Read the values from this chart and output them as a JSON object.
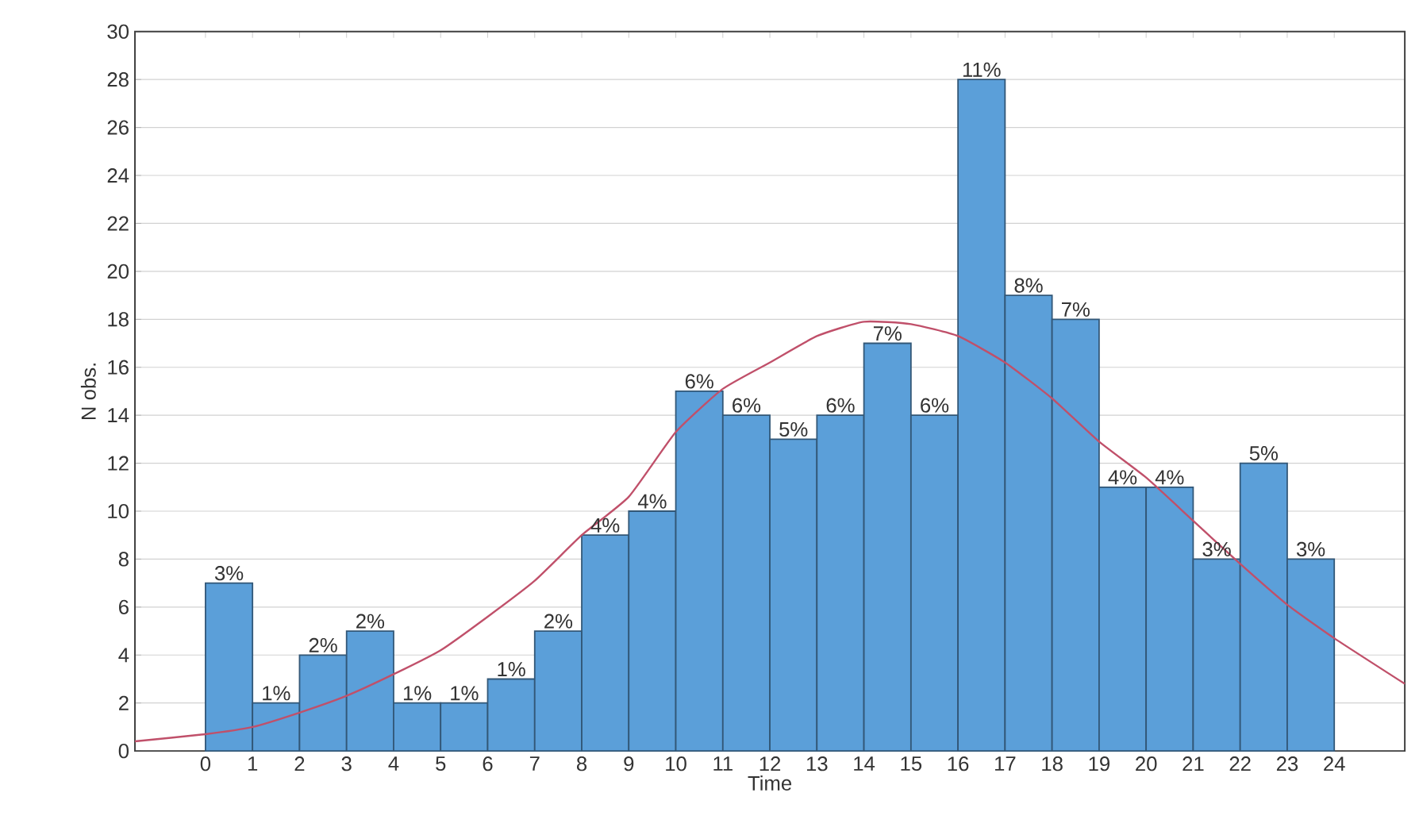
{
  "chart_data": {
    "type": "histogram",
    "xlabel": "Time",
    "ylabel": "N obs.",
    "bins": [
      0,
      1,
      2,
      3,
      4,
      5,
      6,
      7,
      8,
      9,
      10,
      11,
      12,
      13,
      14,
      15,
      16,
      17,
      18,
      19,
      20,
      21,
      22,
      23,
      24
    ],
    "values": [
      7,
      2,
      4,
      5,
      2,
      2,
      3,
      5,
      9,
      10,
      15,
      14,
      13,
      14,
      17,
      14,
      28,
      19,
      18,
      11,
      11,
      8,
      12,
      8
    ],
    "annotations": [
      {
        "text": "3%",
        "x": 0.5,
        "y": 7
      },
      {
        "text": "1%",
        "x": 1.5,
        "y": 2
      },
      {
        "text": "2%",
        "x": 2.5,
        "y": 4
      },
      {
        "text": "2%",
        "x": 3.5,
        "y": 5
      },
      {
        "text": "1%",
        "x": 4.5,
        "y": 2
      },
      {
        "text": "1%",
        "x": 5.5,
        "y": 2
      },
      {
        "text": "1%",
        "x": 6.5,
        "y": 3
      },
      {
        "text": "2%",
        "x": 7.5,
        "y": 5
      },
      {
        "text": "4%",
        "x": 8.5,
        "y": 9
      },
      {
        "text": "4%",
        "x": 9.5,
        "y": 10
      },
      {
        "text": "6%",
        "x": 10.5,
        "y": 15
      },
      {
        "text": "6%",
        "x": 11.5,
        "y": 14
      },
      {
        "text": "5%",
        "x": 12.5,
        "y": 13
      },
      {
        "text": "6%",
        "x": 13.5,
        "y": 14
      },
      {
        "text": "7%",
        "x": 14.5,
        "y": 17
      },
      {
        "text": "6%",
        "x": 15.5,
        "y": 14
      },
      {
        "text": "11%",
        "x": 16.5,
        "y": 28
      },
      {
        "text": "8%",
        "x": 17.5,
        "y": 19
      },
      {
        "text": "7%",
        "x": 18.5,
        "y": 18
      },
      {
        "text": "4%",
        "x": 19.5,
        "y": 11
      },
      {
        "text": "4%",
        "x": 20.5,
        "y": 11
      },
      {
        "text": "3%",
        "x": 21.5,
        "y": 8
      },
      {
        "text": "5%",
        "x": 22.5,
        "y": 12
      },
      {
        "text": "3%",
        "x": 23.5,
        "y": 8
      }
    ],
    "color": "#5b9fd9",
    "series": [
      {
        "type": "line",
        "color": "#c0506a",
        "x": [
          -1.5,
          0,
          1,
          2,
          3,
          4,
          5,
          6,
          7,
          8,
          9,
          10,
          11,
          12,
          13,
          14,
          15,
          16,
          17,
          18,
          19,
          20,
          21,
          22,
          23,
          24,
          25.5
        ],
        "values": [
          0.4,
          0.7,
          1.0,
          1.6,
          2.3,
          3.2,
          4.2,
          5.6,
          7.1,
          9.0,
          10.6,
          13.3,
          15.1,
          16.2,
          17.3,
          17.9,
          17.8,
          17.3,
          16.2,
          14.7,
          12.9,
          11.4,
          9.6,
          7.8,
          6.1,
          4.7,
          2.8
        ]
      }
    ],
    "xlim": [
      -1.5,
      25.5
    ],
    "ylim": [
      0,
      30
    ],
    "xticks": [
      0,
      1,
      2,
      3,
      4,
      5,
      6,
      7,
      8,
      9,
      10,
      11,
      12,
      13,
      14,
      15,
      16,
      17,
      18,
      19,
      20,
      21,
      22,
      23,
      24
    ],
    "yticks": [
      0,
      2,
      4,
      6,
      8,
      10,
      12,
      14,
      16,
      18,
      20,
      22,
      24,
      26,
      28,
      30
    ],
    "grid": "y"
  }
}
